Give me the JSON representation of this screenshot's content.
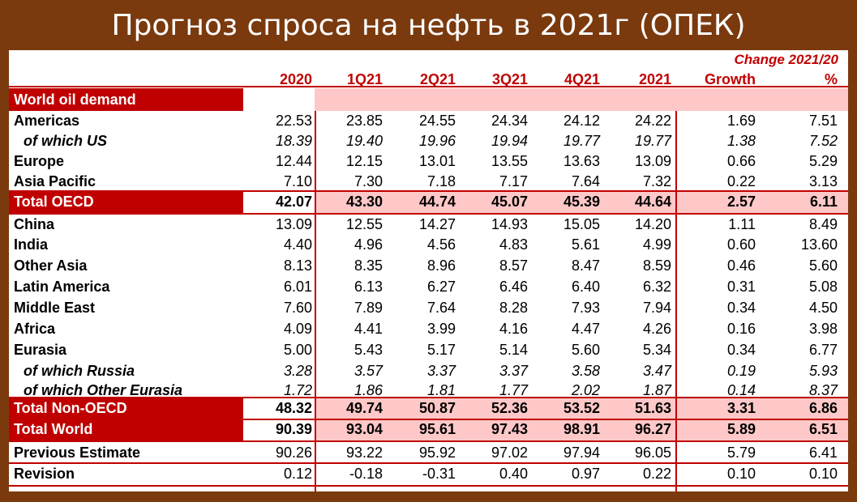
{
  "title": "Прогноз спроса на нефть в 2021г (ОПЕК)",
  "change_header": "Change 2021/20",
  "columns": [
    "2020",
    "1Q21",
    "2Q21",
    "3Q21",
    "4Q21",
    "2021",
    "Growth",
    "%"
  ],
  "section_label": "World oil demand",
  "rows": [
    {
      "label": "Americas",
      "values": [
        "22.53",
        "23.85",
        "24.55",
        "24.34",
        "24.12",
        "24.22",
        "1.69",
        "7.51"
      ]
    },
    {
      "label": "of which US",
      "values": [
        "18.39",
        "19.40",
        "19.96",
        "19.94",
        "19.77",
        "19.77",
        "1.38",
        "7.52"
      ]
    },
    {
      "label": "Europe",
      "values": [
        "12.44",
        "12.15",
        "13.01",
        "13.55",
        "13.63",
        "13.09",
        "0.66",
        "5.29"
      ]
    },
    {
      "label": "Asia Pacific",
      "values": [
        "7.10",
        "7.30",
        "7.18",
        "7.17",
        "7.64",
        "7.32",
        "0.22",
        "3.13"
      ]
    },
    {
      "label": "Total OECD",
      "values": [
        "42.07",
        "43.30",
        "44.74",
        "45.07",
        "45.39",
        "44.64",
        "2.57",
        "6.11"
      ]
    },
    {
      "label": "China",
      "values": [
        "13.09",
        "12.55",
        "14.27",
        "14.93",
        "15.05",
        "14.20",
        "1.11",
        "8.49"
      ]
    },
    {
      "label": "India",
      "values": [
        "4.40",
        "4.96",
        "4.56",
        "4.83",
        "5.61",
        "4.99",
        "0.60",
        "13.60"
      ]
    },
    {
      "label": "Other Asia",
      "values": [
        "8.13",
        "8.35",
        "8.96",
        "8.57",
        "8.47",
        "8.59",
        "0.46",
        "5.60"
      ]
    },
    {
      "label": "Latin America",
      "values": [
        "6.01",
        "6.13",
        "6.27",
        "6.46",
        "6.40",
        "6.32",
        "0.31",
        "5.08"
      ]
    },
    {
      "label": "Middle East",
      "values": [
        "7.60",
        "7.89",
        "7.64",
        "8.28",
        "7.93",
        "7.94",
        "0.34",
        "4.50"
      ]
    },
    {
      "label": "Africa",
      "values": [
        "4.09",
        "4.41",
        "3.99",
        "4.16",
        "4.47",
        "4.26",
        "0.16",
        "3.98"
      ]
    },
    {
      "label": "Eurasia",
      "values": [
        "5.00",
        "5.43",
        "5.17",
        "5.14",
        "5.60",
        "5.34",
        "0.34",
        "6.77"
      ]
    },
    {
      "label": "of which Russia",
      "values": [
        "3.28",
        "3.57",
        "3.37",
        "3.37",
        "3.58",
        "3.47",
        "0.19",
        "5.93"
      ]
    },
    {
      "label": "of which Other Eurasia",
      "values": [
        "1.72",
        "1.86",
        "1.81",
        "1.77",
        "2.02",
        "1.87",
        "0.14",
        "8.37"
      ]
    },
    {
      "label": "Total Non-OECD",
      "values": [
        "48.32",
        "49.74",
        "50.87",
        "52.36",
        "53.52",
        "51.63",
        "3.31",
        "6.86"
      ]
    },
    {
      "label": "Total World",
      "values": [
        "90.39",
        "93.04",
        "95.61",
        "97.43",
        "98.91",
        "96.27",
        "5.89",
        "6.51"
      ]
    },
    {
      "label": "Previous Estimate",
      "values": [
        "90.26",
        "93.22",
        "95.92",
        "97.02",
        "97.94",
        "96.05",
        "5.79",
        "6.41"
      ]
    },
    {
      "label": "Revision",
      "values": [
        "0.12",
        "-0.18",
        "-0.31",
        "0.40",
        "0.97",
        "0.22",
        "0.10",
        "0.10"
      ]
    }
  ]
}
